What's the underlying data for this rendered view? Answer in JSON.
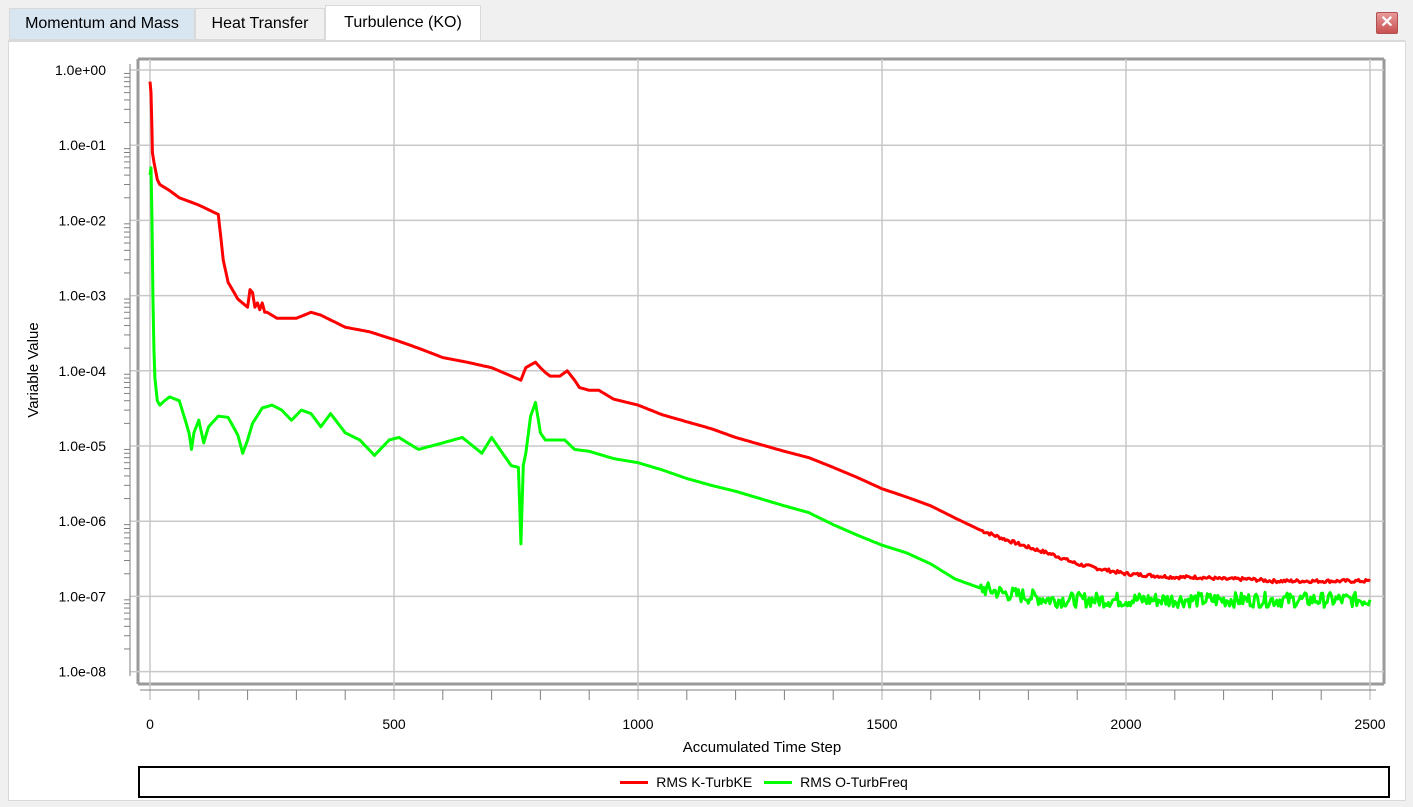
{
  "tabs": [
    {
      "label": "Momentum and Mass"
    },
    {
      "label": "Heat Transfer"
    },
    {
      "label": "Turbulence (KO)"
    }
  ],
  "close_label": "✕",
  "colors": {
    "series1": "#ff0000",
    "series2": "#00ff00",
    "grid": "#c8c8c8",
    "axis": "#888888"
  },
  "chart_data": {
    "type": "line",
    "xlabel": "Accumulated Time Step",
    "ylabel": "Variable Value",
    "xlim": [
      -20,
      2510
    ],
    "ylim_exp": [
      -8,
      0.15
    ],
    "yscale": "log",
    "grid": true,
    "legend_position": "bottom",
    "x_ticks": [
      0,
      500,
      1000,
      1500,
      2000,
      2500
    ],
    "x_tick_labels": [
      "0",
      "500",
      "1000",
      "1500",
      "2000",
      "2500"
    ],
    "y_ticks": [
      1,
      0.1,
      0.01,
      0.001,
      0.0001,
      1e-05,
      1e-06,
      1e-07,
      1e-08
    ],
    "y_tick_labels": [
      "1.0e+00",
      "1.0e-01",
      "1.0e-02",
      "1.0e-03",
      "1.0e-04",
      "1.0e-05",
      "1.0e-06",
      "1.0e-07",
      "1.0e-08"
    ],
    "series": [
      {
        "name": "RMS K-TurbKE",
        "color": "#ff0000",
        "noise": 0.03,
        "x": [
          0,
          2,
          4,
          5,
          8,
          15,
          20,
          40,
          60,
          100,
          140,
          145,
          150,
          160,
          180,
          200,
          205,
          210,
          215,
          220,
          225,
          230,
          235,
          240,
          260,
          300,
          330,
          350,
          400,
          450,
          500,
          550,
          600,
          650,
          700,
          750,
          760,
          770,
          780,
          790,
          800,
          810,
          820,
          840,
          855,
          870,
          880,
          900,
          920,
          950,
          1000,
          1050,
          1100,
          1150,
          1200,
          1250,
          1300,
          1350,
          1400,
          1450,
          1500,
          1550,
          1600,
          1650,
          1700,
          1750,
          1800,
          1850,
          1900,
          1950,
          2000,
          2050,
          2100,
          2150,
          2200,
          2250,
          2300,
          2350,
          2400,
          2450,
          2500
        ],
        "y": [
          0.7,
          0.5,
          0.15,
          0.08,
          0.06,
          0.035,
          0.03,
          0.025,
          0.02,
          0.016,
          0.012,
          0.006,
          0.003,
          0.0015,
          0.0009,
          0.0007,
          0.0012,
          0.0011,
          0.0007,
          0.0008,
          0.00065,
          0.0008,
          0.0006,
          0.0006,
          0.0005,
          0.0005,
          0.0006,
          0.00055,
          0.00038,
          0.00033,
          0.00026,
          0.0002,
          0.00015,
          0.00013,
          0.00011,
          8e-05,
          7.5e-05,
          0.00011,
          0.00012,
          0.00013,
          0.00011,
          9.5e-05,
          8.5e-05,
          8.5e-05,
          0.0001,
          7.5e-05,
          6e-05,
          5.5e-05,
          5.5e-05,
          4.2e-05,
          3.5e-05,
          2.6e-05,
          2.1e-05,
          1.7e-05,
          1.3e-05,
          1.05e-05,
          8.5e-06,
          7e-06,
          5.2e-06,
          3.8e-06,
          2.7e-06,
          2.1e-06,
          1.6e-06,
          1.1e-06,
          7.7e-07,
          5.8e-07,
          4.5e-07,
          3.6e-07,
          2.7e-07,
          2.3e-07,
          2e-07,
          1.9e-07,
          1.8e-07,
          1.8e-07,
          1.7e-07,
          1.7e-07,
          1.6e-07,
          1.6e-07,
          1.6e-07,
          1.6e-07,
          1.6e-07
        ]
      },
      {
        "name": "RMS O-TurbFreq",
        "color": "#00ff00",
        "noise": 0.05,
        "x": [
          0,
          2,
          4,
          6,
          8,
          10,
          15,
          20,
          30,
          40,
          60,
          80,
          85,
          90,
          100,
          110,
          120,
          140,
          160,
          180,
          190,
          200,
          210,
          230,
          250,
          270,
          290,
          310,
          330,
          350,
          370,
          400,
          430,
          460,
          490,
          510,
          550,
          600,
          640,
          680,
          700,
          740,
          755,
          760,
          765,
          770,
          780,
          790,
          800,
          810,
          830,
          850,
          870,
          900,
          950,
          1000,
          1050,
          1100,
          1150,
          1200,
          1250,
          1300,
          1350,
          1400,
          1450,
          1500,
          1550,
          1600,
          1650,
          1700,
          1750,
          1800,
          1850,
          1900,
          2000,
          2100,
          2200,
          2300,
          2400,
          2500
        ],
        "y": [
          0.04,
          0.05,
          0.01,
          0.001,
          0.0002,
          8e-05,
          4e-05,
          3.5e-05,
          4e-05,
          4.5e-05,
          4e-05,
          1.5e-05,
          9e-06,
          1.5e-05,
          2.2e-05,
          1.1e-05,
          1.8e-05,
          2.5e-05,
          2.4e-05,
          1.4e-05,
          8e-06,
          1.2e-05,
          2e-05,
          3.2e-05,
          3.5e-05,
          3e-05,
          2.2e-05,
          3e-05,
          2.7e-05,
          1.8e-05,
          2.7e-05,
          1.5e-05,
          1.2e-05,
          7.5e-06,
          1.2e-05,
          1.3e-05,
          9e-06,
          1.1e-05,
          1.3e-05,
          8e-06,
          1.3e-05,
          5.5e-06,
          5.2e-06,
          5e-07,
          5.5e-06,
          8e-06,
          2.5e-05,
          3.8e-05,
          1.5e-05,
          1.2e-05,
          1.2e-05,
          1.2e-05,
          9e-06,
          8.5e-06,
          6.8e-06,
          6e-06,
          4.8e-06,
          3.7e-06,
          3e-06,
          2.5e-06,
          2e-06,
          1.6e-06,
          1.3e-06,
          9e-07,
          6.5e-07,
          4.8e-07,
          3.8e-07,
          2.7e-07,
          1.7e-07,
          1.3e-07,
          1.1e-07,
          1e-07,
          9e-08,
          9e-08,
          9e-08,
          9e-08,
          9e-08,
          9e-08,
          9e-08,
          9e-08
        ]
      }
    ]
  }
}
